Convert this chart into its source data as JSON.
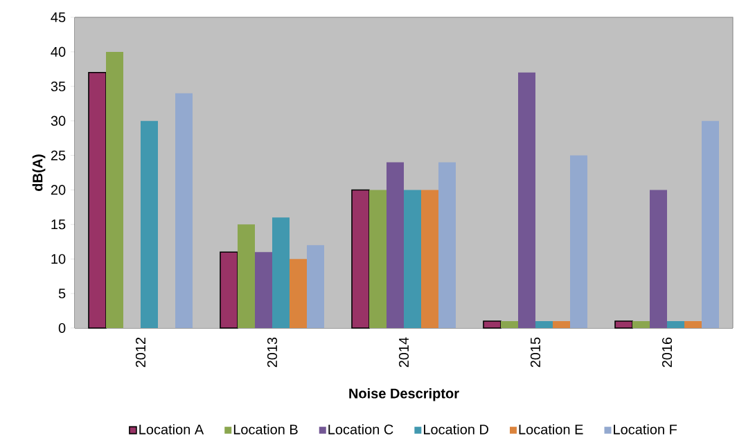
{
  "chart_data": {
    "type": "bar",
    "xlabel": "Noise Descriptor",
    "ylabel": "dB(A)",
    "categories": [
      "2012",
      "2013",
      "2014",
      "2015",
      "2016"
    ],
    "series": [
      {
        "name": "Location A",
        "color": "#993366",
        "values": [
          37,
          11,
          20,
          1,
          1
        ]
      },
      {
        "name": "Location B",
        "color": "#8aa64e",
        "values": [
          40,
          15,
          20,
          1,
          1
        ]
      },
      {
        "name": "Location C",
        "color": "#735794",
        "values": [
          null,
          11,
          24,
          37,
          20
        ]
      },
      {
        "name": "Location D",
        "color": "#4198af",
        "values": [
          30,
          16,
          20,
          1,
          1
        ]
      },
      {
        "name": "Location E",
        "color": "#db843d",
        "values": [
          null,
          10,
          20,
          1,
          1
        ]
      },
      {
        "name": "Location F",
        "color": "#93a9cf",
        "values": [
          34,
          12,
          24,
          25,
          30
        ]
      }
    ],
    "ylim": [
      0,
      45
    ],
    "yticks": [
      0,
      5,
      10,
      15,
      20,
      25,
      30,
      35,
      40,
      45
    ],
    "grid": false,
    "legend": "bottom"
  }
}
